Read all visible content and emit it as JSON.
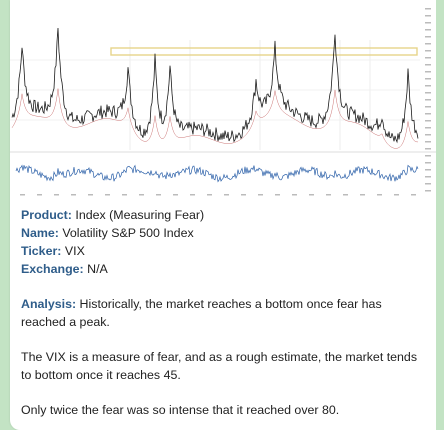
{
  "colors": {
    "chat_background": "#c3e3c4",
    "bubble": "#ffffff",
    "label_text": "#2f5d8a",
    "body_text": "#222222",
    "chart_line": "#1a1a1a",
    "highlight_box": "#e6d48a"
  },
  "chart": {
    "description_icon": "stock-chart-image"
  },
  "message": {
    "product_label": "Product:",
    "product_value": "Index (Measuring Fear)",
    "name_label": "Name:",
    "name_value": "Volatility S&P 500 Index",
    "ticker_label": "Ticker:",
    "ticker_value": "VIX",
    "exchange_label": "Exchange:",
    "exchange_value": "N/A",
    "analysis_label": "Analysis:",
    "analysis_text": "Historically, the market reaches a bottom once fear has reached a peak.",
    "paragraph_2": "The VIX is a measure of fear, and as a rough estimate, the market tends to bottom once it reaches 45.",
    "paragraph_3": "Only twice the fear was so intense that it reached over 80."
  }
}
